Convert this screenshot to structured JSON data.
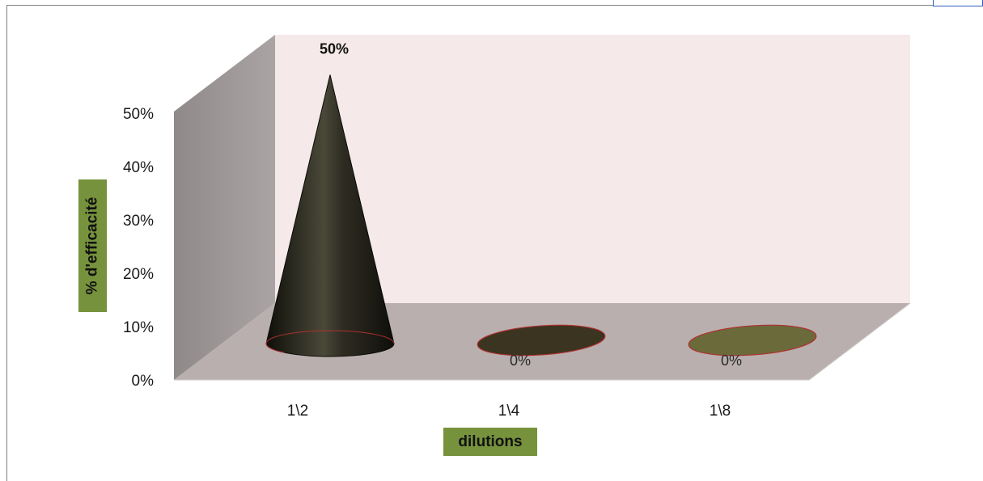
{
  "chart_data": {
    "type": "bar",
    "style": "3d-cone",
    "categories": [
      "1\\2",
      "1\\4",
      "1\\8"
    ],
    "values": [
      50,
      0,
      0
    ],
    "data_labels": [
      "50%",
      "0%",
      "0%"
    ],
    "xlabel": "dilutions",
    "ylabel": "% d'efficacité",
    "ylim": [
      0,
      50
    ],
    "yticks": [
      "0%",
      "10%",
      "20%",
      "30%",
      "40%",
      "50%"
    ],
    "grid": false,
    "colors": {
      "series": [
        "#25241a",
        "#3a3420",
        "#6b6a3a"
      ],
      "back_wall": "#f5e9e9",
      "side_wall": "#9e9898",
      "floor": "#b9afaf",
      "axis_title_bg": "#76923c"
    }
  }
}
